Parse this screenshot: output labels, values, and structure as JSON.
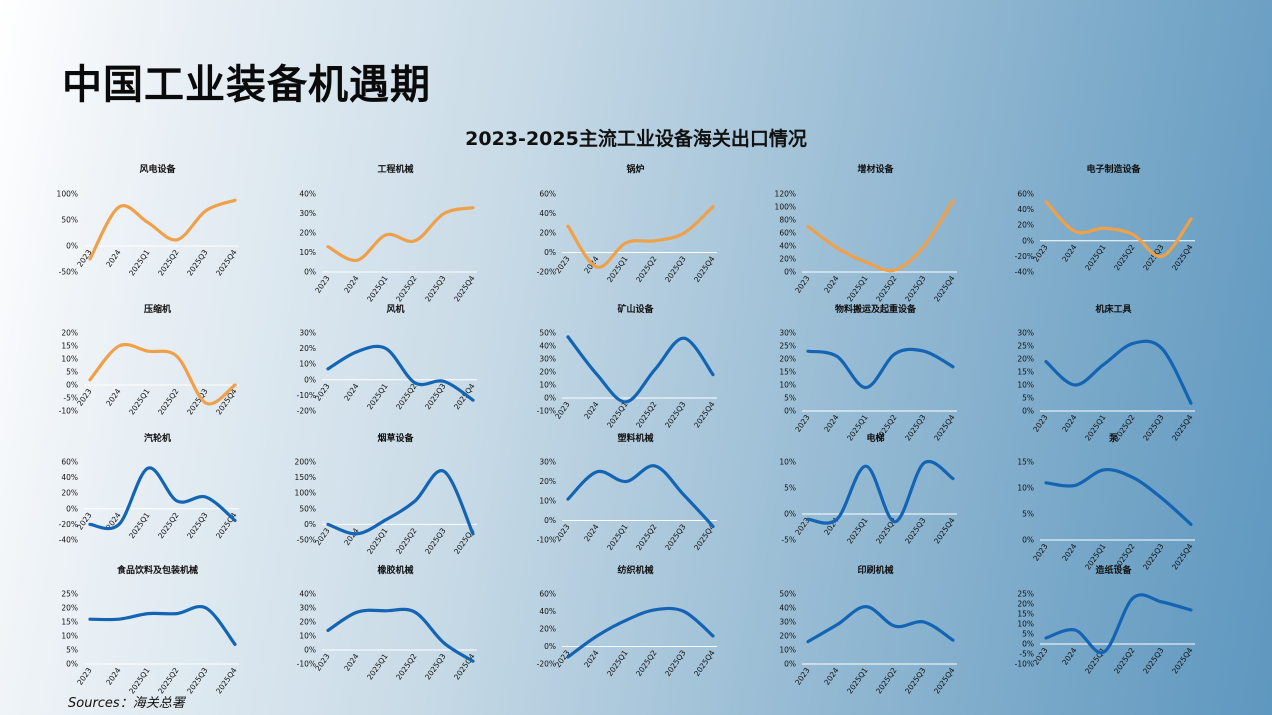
{
  "page": {
    "title": "中国工业装备机遇期",
    "chart_title": "2023-2025主流工业设备海关出口情况",
    "source": "Sources：海关总署"
  },
  "colors": {
    "orange": "#F0A048",
    "blue": "#1464B4"
  },
  "chart_data": [
    {
      "type": "line",
      "title": "风电设备",
      "color": "orange",
      "categories": [
        "2023",
        "2024",
        "2025Q1",
        "2025Q2",
        "2025Q3",
        "2025Q4"
      ],
      "values": [
        -25,
        75,
        45,
        12,
        68,
        88
      ],
      "yticks": [
        "100%",
        "50%",
        "0%",
        "-50%"
      ],
      "ylim": [
        -50,
        100
      ],
      "zero": 0
    },
    {
      "type": "line",
      "title": "工程机械",
      "color": "orange",
      "categories": [
        "2023",
        "2024",
        "2025Q1",
        "2025Q2",
        "2025Q3",
        "2025Q4"
      ],
      "values": [
        13,
        6,
        19,
        16,
        30,
        33
      ],
      "yticks": [
        "40%",
        "30%",
        "20%",
        "10%",
        "0%"
      ],
      "ylim": [
        0,
        40
      ],
      "zero": 0
    },
    {
      "type": "line",
      "title": "锅炉",
      "color": "orange",
      "categories": [
        "2023",
        "2024",
        "2025Q1",
        "2025Q2",
        "2025Q3",
        "2025Q4"
      ],
      "values": [
        27,
        -15,
        10,
        12,
        20,
        47
      ],
      "yticks": [
        "60%",
        "40%",
        "20%",
        "0%",
        "-20%"
      ],
      "ylim": [
        -20,
        60
      ],
      "zero": 0
    },
    {
      "type": "line",
      "title": "增材设备",
      "color": "orange",
      "categories": [
        "2023",
        "2024",
        "2025Q1",
        "2025Q2",
        "2025Q3",
        "2025Q4"
      ],
      "values": [
        70,
        37,
        15,
        3,
        40,
        110
      ],
      "yticks": [
        "120%",
        "100%",
        "80%",
        "60%",
        "40%",
        "20%",
        "0%"
      ],
      "ylim": [
        0,
        120
      ],
      "zero": 0
    },
    {
      "type": "line",
      "title": "电子制造设备",
      "color": "orange",
      "categories": [
        "2023",
        "2024",
        "2025Q1",
        "2025Q2",
        "2025Q3",
        "2025Q4"
      ],
      "values": [
        50,
        12,
        16,
        8,
        -20,
        28
      ],
      "yticks": [
        "60%",
        "40%",
        "20%",
        "0%",
        "-20%",
        "-40%"
      ],
      "ylim": [
        -40,
        60
      ],
      "zero": 0
    },
    {
      "type": "line",
      "title": "压缩机",
      "color": "orange",
      "categories": [
        "2023",
        "2024",
        "2025Q1",
        "2025Q2",
        "2025Q3",
        "2025Q4"
      ],
      "values": [
        2,
        15,
        13,
        11,
        -7,
        0
      ],
      "yticks": [
        "20%",
        "15%",
        "10%",
        "5%",
        "0%",
        "-5%",
        "-10%"
      ],
      "ylim": [
        -10,
        20
      ],
      "zero": 0
    },
    {
      "type": "line",
      "title": "风机",
      "color": "blue",
      "categories": [
        "2023",
        "2024",
        "2025Q1",
        "2025Q2",
        "2025Q3",
        "2025Q4"
      ],
      "values": [
        7,
        18,
        20,
        -2,
        -1,
        -13
      ],
      "yticks": [
        "30%",
        "20%",
        "10%",
        "0%",
        "-10%",
        "-20%"
      ],
      "ylim": [
        -20,
        30
      ],
      "zero": 0
    },
    {
      "type": "line",
      "title": "矿山设备",
      "color": "blue",
      "categories": [
        "2023",
        "2024",
        "2025Q1",
        "2025Q2",
        "2025Q3",
        "2025Q4"
      ],
      "values": [
        47,
        18,
        -3,
        22,
        46,
        18
      ],
      "yticks": [
        "50%",
        "40%",
        "30%",
        "20%",
        "10%",
        "0%",
        "-10%"
      ],
      "ylim": [
        -10,
        50
      ],
      "zero": 0
    },
    {
      "type": "line",
      "title": "物料搬运及起重设备",
      "color": "blue",
      "categories": [
        "2023",
        "2024",
        "2025Q1",
        "2025Q2",
        "2025Q3",
        "2025Q4"
      ],
      "values": [
        23,
        21,
        9,
        22,
        23,
        17
      ],
      "yticks": [
        "30%",
        "25%",
        "20%",
        "15%",
        "10%",
        "5%",
        "0%"
      ],
      "ylim": [
        0,
        30
      ],
      "zero": 0
    },
    {
      "type": "line",
      "title": "机床工具",
      "color": "blue",
      "categories": [
        "2023",
        "2024",
        "2025Q1",
        "2025Q2",
        "2025Q3",
        "2025Q4"
      ],
      "values": [
        19,
        10,
        18,
        26,
        24,
        3
      ],
      "yticks": [
        "30%",
        "25%",
        "20%",
        "15%",
        "10%",
        "5%",
        "0%"
      ],
      "ylim": [
        0,
        30
      ],
      "zero": 0
    },
    {
      "type": "line",
      "title": "汽轮机",
      "color": "blue",
      "categories": [
        "2023",
        "2024",
        "2025Q1",
        "2025Q2",
        "2025Q3",
        "2025Q4"
      ],
      "values": [
        -20,
        -20,
        52,
        10,
        15,
        -15
      ],
      "yticks": [
        "60%",
        "40%",
        "20%",
        "0%",
        "-20%",
        "-40%"
      ],
      "ylim": [
        -40,
        60
      ],
      "zero": 0
    },
    {
      "type": "line",
      "title": "烟草设备",
      "color": "blue",
      "categories": [
        "2023",
        "2024",
        "2025Q1",
        "2025Q2",
        "2025Q3",
        "2025Q4"
      ],
      "values": [
        0,
        -30,
        15,
        75,
        170,
        -30
      ],
      "yticks": [
        "200%",
        "150%",
        "100%",
        "50%",
        "0%",
        "-50%"
      ],
      "ylim": [
        -50,
        200
      ],
      "zero": 0
    },
    {
      "type": "line",
      "title": "塑料机械",
      "color": "blue",
      "categories": [
        "2023",
        "2024",
        "2025Q1",
        "2025Q2",
        "2025Q3",
        "2025Q4"
      ],
      "values": [
        11,
        25,
        20,
        28,
        13,
        -3
      ],
      "yticks": [
        "30%",
        "20%",
        "10%",
        "0%",
        "-10%"
      ],
      "ylim": [
        -10,
        30
      ],
      "zero": 0
    },
    {
      "type": "line",
      "title": "电梯",
      "color": "blue",
      "categories": [
        "2023",
        "2024",
        "2025Q1",
        "2025Q2",
        "2025Q3",
        "2025Q4"
      ],
      "values": [
        -1,
        -1,
        9.2,
        -1.5,
        9.8,
        6.8
      ],
      "yticks": [
        "10%",
        "5%",
        "0%",
        "-5%"
      ],
      "ylim": [
        -5,
        10
      ],
      "zero": 0
    },
    {
      "type": "line",
      "title": "泵",
      "color": "blue",
      "categories": [
        "2023",
        "2024",
        "2025Q1",
        "2025Q2",
        "2025Q3",
        "2025Q4"
      ],
      "values": [
        11,
        10.5,
        13.5,
        12,
        8,
        3
      ],
      "yticks": [
        "15%",
        "10%",
        "5%",
        "0%"
      ],
      "ylim": [
        0,
        15
      ],
      "zero": 0
    },
    {
      "type": "line",
      "title": "食品饮料及包装机械",
      "color": "blue",
      "categories": [
        "2023",
        "2024",
        "2025Q1",
        "2025Q2",
        "2025Q3",
        "2025Q4"
      ],
      "values": [
        16,
        16,
        18,
        18,
        20,
        7
      ],
      "yticks": [
        "25%",
        "20%",
        "15%",
        "10%",
        "5%",
        "0%"
      ],
      "ylim": [
        0,
        25
      ],
      "zero": 0
    },
    {
      "type": "line",
      "title": "橡胶机械",
      "color": "blue",
      "categories": [
        "2023",
        "2024",
        "2025Q1",
        "2025Q2",
        "2025Q3",
        "2025Q4"
      ],
      "values": [
        14,
        27,
        28,
        27,
        5,
        -8
      ],
      "yticks": [
        "40%",
        "30%",
        "20%",
        "10%",
        "0%",
        "-10%"
      ],
      "ylim": [
        -10,
        40
      ],
      "zero": 0
    },
    {
      "type": "line",
      "title": "纺织机械",
      "color": "blue",
      "categories": [
        "2023",
        "2024",
        "2025Q1",
        "2025Q2",
        "2025Q3",
        "2025Q4"
      ],
      "values": [
        -12,
        12,
        30,
        42,
        40,
        12
      ],
      "yticks": [
        "60%",
        "40%",
        "20%",
        "0%",
        "-20%"
      ],
      "ylim": [
        -20,
        60
      ],
      "zero": 0
    },
    {
      "type": "line",
      "title": "印刷机械",
      "color": "blue",
      "categories": [
        "2023",
        "2024",
        "2025Q1",
        "2025Q2",
        "2025Q3",
        "2025Q4"
      ],
      "values": [
        16,
        28,
        41,
        27,
        30,
        17
      ],
      "yticks": [
        "50%",
        "40%",
        "30%",
        "20%",
        "10%",
        "0%"
      ],
      "ylim": [
        0,
        50
      ],
      "zero": 0
    },
    {
      "type": "line",
      "title": "造纸设备",
      "color": "blue",
      "categories": [
        "2023",
        "2024",
        "2025Q1",
        "2025Q2",
        "2025Q3",
        "2025Q4"
      ],
      "values": [
        3,
        7,
        -4,
        23,
        21,
        17
      ],
      "yticks": [
        "25%",
        "20%",
        "15%",
        "10%",
        "5%",
        "0%",
        "-5%",
        "-10%"
      ],
      "ylim": [
        -10,
        25
      ],
      "zero": 0
    }
  ]
}
